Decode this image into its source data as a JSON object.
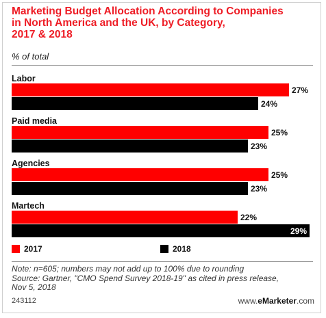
{
  "header": {
    "title_lines": [
      "Marketing Budget Allocation According to Companies",
      "in North America and the UK, by Category,",
      "2017 & 2018"
    ],
    "subtitle": "% of total"
  },
  "chart_data": {
    "type": "bar",
    "orientation": "horizontal",
    "categories": [
      "Labor",
      "Paid media",
      "Agencies",
      "Martech"
    ],
    "series": [
      {
        "name": "2017",
        "values": [
          27,
          25,
          25,
          22
        ],
        "labels": [
          "27%",
          "25%",
          "25%",
          "22%"
        ],
        "color": "#ff0000"
      },
      {
        "name": "2018",
        "values": [
          24,
          23,
          23,
          29
        ],
        "labels": [
          "24%",
          "23%",
          "23%",
          "29%"
        ],
        "color": "#000000"
      }
    ],
    "xlim": [
      0,
      29
    ],
    "grid": false,
    "legend": "bottom-left"
  },
  "footer": {
    "note_lines": [
      "Note: n=605; numbers may not add up to 100% due to rounding",
      "Source: Gartner, \"CMO Spend Survey 2018-19\" as cited in press release,",
      "Nov 5, 2018"
    ],
    "chart_id": "243112",
    "brand_prefix": "www.",
    "brand_name": "eMarketer",
    "brand_suffix": ".com"
  }
}
